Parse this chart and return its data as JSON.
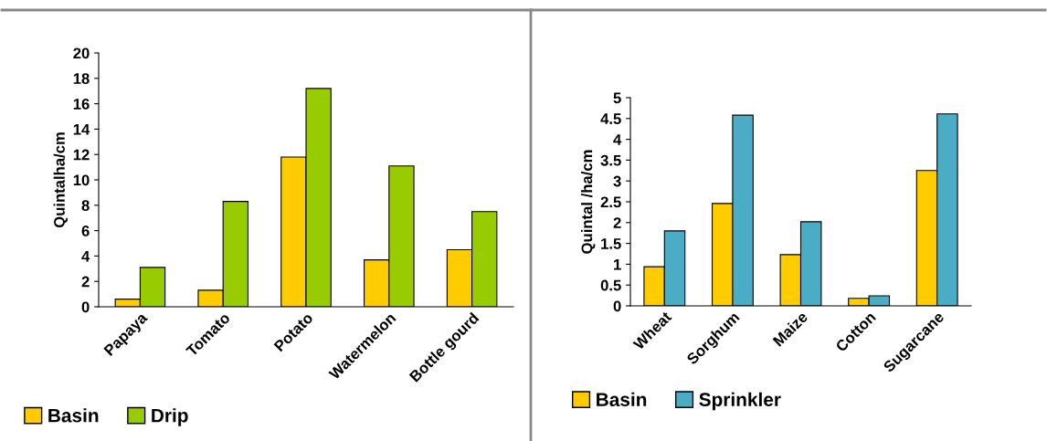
{
  "chart_data": [
    {
      "type": "bar",
      "ylabel": "Quintalha/cm",
      "categories": [
        "Papaya",
        "Tomato",
        "Potato",
        "Watermelon",
        "Bottle gourd"
      ],
      "series": [
        {
          "name": "Basin",
          "color": "#ffcc00",
          "values": [
            0.6,
            1.3,
            11.8,
            3.7,
            4.5
          ]
        },
        {
          "name": "Drip",
          "color": "#99cc00",
          "values": [
            3.1,
            8.3,
            17.2,
            11.1,
            7.5
          ]
        }
      ],
      "ylim": [
        0,
        20
      ],
      "yticks": [
        0,
        2,
        4,
        6,
        8,
        10,
        12,
        14,
        16,
        18,
        20
      ],
      "grid": false,
      "legend": "bottom left"
    },
    {
      "type": "bar",
      "ylabel": "Quintal /ha/cm",
      "categories": [
        "Wheat",
        "Sorghum",
        "Maize",
        "Cotton",
        "Sugarcane"
      ],
      "series": [
        {
          "name": "Basin",
          "color": "#ffcc00",
          "values": [
            0.94,
            2.46,
            1.23,
            0.18,
            3.25
          ]
        },
        {
          "name": "Sprinkler",
          "color": "#4bacc6",
          "values": [
            1.8,
            4.58,
            2.02,
            0.24,
            4.61
          ]
        }
      ],
      "ylim": [
        0,
        5
      ],
      "yticks": [
        0,
        0.5,
        1,
        1.5,
        2,
        2.5,
        3,
        3.5,
        4,
        4.5,
        5
      ],
      "grid": false,
      "legend": "bottom left"
    }
  ]
}
